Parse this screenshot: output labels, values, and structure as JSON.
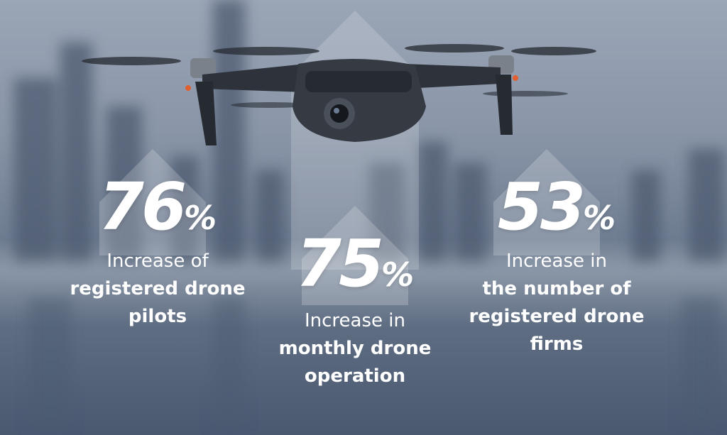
{
  "stats": [
    {
      "value": "76",
      "unit": "%",
      "lines": [
        "Increase of",
        "registered drone",
        "pilots"
      ]
    },
    {
      "value": "75",
      "unit": "%",
      "lines": [
        "Increase in",
        "monthly drone",
        "operation"
      ]
    },
    {
      "value": "53",
      "unit": "%",
      "lines": [
        "Increase in",
        "the number of",
        "registered drone",
        "firms"
      ]
    }
  ],
  "colors": {
    "background": "#7f8ca0",
    "text": "#ffffff",
    "drone": "#2b3038"
  }
}
